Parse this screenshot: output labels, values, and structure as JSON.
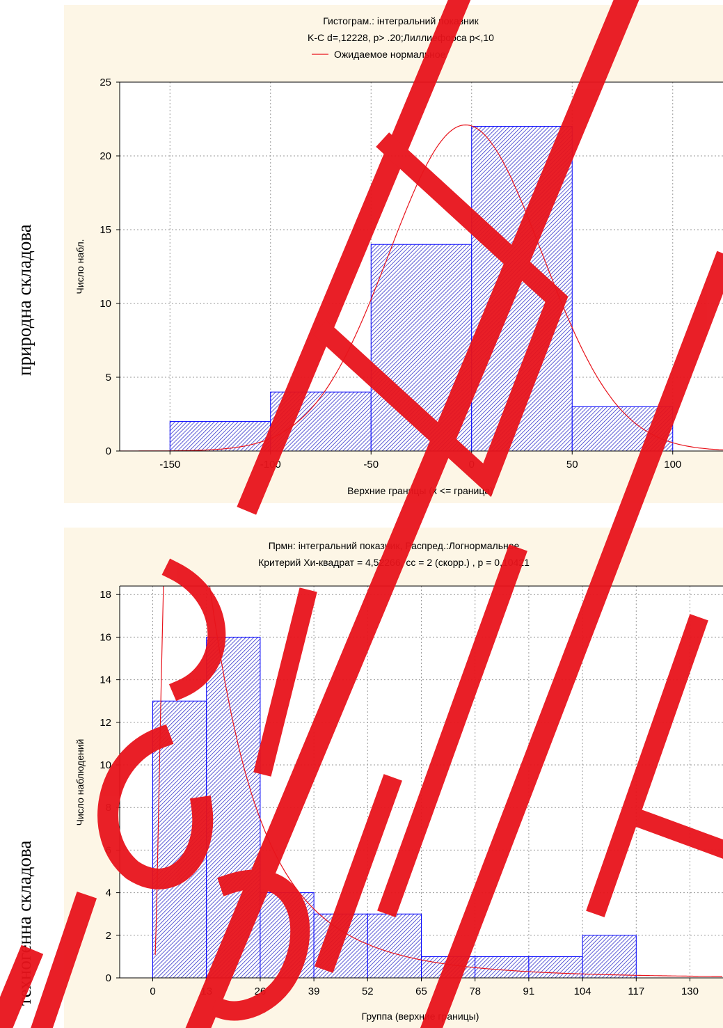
{
  "side_labels": [
    "природна складова",
    "техногенна складова"
  ],
  "colors": {
    "bar_fill": "#3333cc",
    "bar_stroke": "#0000ff",
    "curve": "#e8141c",
    "panel_bg": "#fdf6e6",
    "watermark": "#e8141c"
  },
  "chart_data": [
    {
      "type": "bar",
      "title": "Гистограм.: інтегральний показник",
      "subtitle": "K-C d=,12228, p> .20;Лиллиефорса p<,10",
      "legend": {
        "label": "Ожидаемое нормальное",
        "placement": "top-center"
      },
      "xlabel": "Верхние границы (x <= граница)",
      "ylabel": "Число набл.",
      "xlim": [
        -175,
        125
      ],
      "ylim": [
        0,
        25
      ],
      "xticks": [
        -150,
        -100,
        -50,
        0,
        50,
        100
      ],
      "yticks": [
        0,
        5,
        10,
        15,
        20,
        25
      ],
      "grid": true,
      "bins": [
        {
          "from": -150,
          "to": -100,
          "value": 2
        },
        {
          "from": -100,
          "to": -50,
          "value": 4
        },
        {
          "from": -50,
          "to": 0,
          "value": 14
        },
        {
          "from": 0,
          "to": 50,
          "value": 22
        },
        {
          "from": 50,
          "to": 100,
          "value": 3
        }
      ],
      "curve": {
        "type": "normal",
        "mean": -3,
        "sd": 38,
        "peak": 22.1
      }
    },
    {
      "type": "bar",
      "title": "Прмн: інтегральний показник, Распред.:Логнормальное",
      "subtitle": "Критерий Хи-квадрат = 4,52266, сс = 2 (скорр.) , p = 0,10421",
      "xlabel": "Группа (верхние границы)",
      "ylabel": "Число наблюдений",
      "xlim": [
        -8,
        138
      ],
      "ylim": [
        0,
        18.4
      ],
      "xticks": [
        0,
        13,
        26,
        39,
        52,
        65,
        78,
        91,
        104,
        117,
        130
      ],
      "yticks": [
        0,
        2,
        4,
        6,
        8,
        10,
        12,
        14,
        16,
        18
      ],
      "grid": true,
      "bins": [
        {
          "from": 0,
          "to": 13,
          "value": 13
        },
        {
          "from": 13,
          "to": 26,
          "value": 16
        },
        {
          "from": 26,
          "to": 39,
          "value": 4
        },
        {
          "from": 39,
          "to": 52,
          "value": 3
        },
        {
          "from": 52,
          "to": 65,
          "value": 3
        },
        {
          "from": 65,
          "to": 78,
          "value": 1
        },
        {
          "from": 78,
          "to": 91,
          "value": 1
        },
        {
          "from": 91,
          "to": 104,
          "value": 1
        },
        {
          "from": 104,
          "to": 117,
          "value": 2
        }
      ],
      "curve": {
        "type": "lognormal",
        "mu": 2.6,
        "sigma": 0.9,
        "n": 44,
        "binwidth": 13,
        "x_start": 0.6
      }
    }
  ]
}
